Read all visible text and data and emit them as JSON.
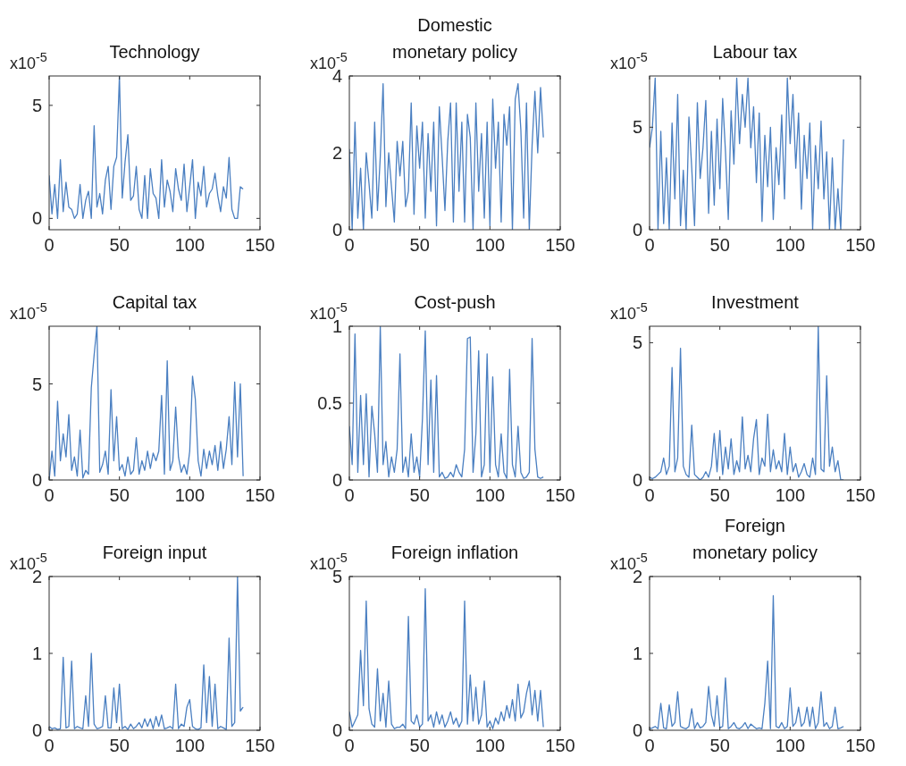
{
  "chart_data": [
    {
      "type": "line",
      "title": "Technology",
      "annotations": [
        "x10$^{-5}$"
      ],
      "line_style": "solid",
      "xlim": [
        0,
        150
      ],
      "xticks": [
        0,
        50,
        100,
        150
      ],
      "ylim": [
        -0.5,
        6.3
      ],
      "yticks": [
        0,
        5
      ],
      "x": [
        0,
        2,
        4,
        6,
        8,
        10,
        12,
        14,
        16,
        18,
        20,
        22,
        24,
        26,
        28,
        30,
        32,
        34,
        36,
        38,
        40,
        42,
        44,
        46,
        48,
        50,
        52,
        54,
        56,
        58,
        60,
        62,
        64,
        66,
        68,
        70,
        72,
        74,
        76,
        78,
        80,
        82,
        84,
        86,
        88,
        90,
        92,
        94,
        96,
        98,
        100,
        102,
        104,
        106,
        108,
        110,
        112,
        114,
        116,
        118,
        120,
        122,
        124,
        126,
        128,
        130,
        132,
        134,
        136,
        138
      ],
      "series": [
        {
          "color": "#4a7fc1",
          "values": [
            1.9,
            0.2,
            1.5,
            0,
            2.6,
            0.3,
            1.6,
            0.5,
            0.4,
            0,
            0.2,
            1.5,
            0,
            0.8,
            1.2,
            0,
            4.1,
            0.5,
            1.1,
            0.2,
            1.7,
            2.3,
            0.4,
            2.3,
            2.7,
            6.3,
            0.9,
            2.5,
            3.7,
            0.8,
            1.0,
            2.3,
            0.4,
            0,
            1.9,
            0,
            2.2,
            1.1,
            0.9,
            0,
            2.6,
            0.5,
            1.7,
            1.2,
            0.3,
            2.2,
            1.3,
            0.8,
            2.4,
            0.3,
            1.4,
            2.6,
            0,
            1.6,
            1.0,
            2.3,
            0.5,
            1.1,
            1.3,
            2.0,
            1.0,
            0.3,
            1.4,
            0.9,
            2.7,
            0.4,
            0,
            0,
            1.4,
            1.3
          ]
        }
      ]
    },
    {
      "type": "line",
      "title": "Domestic monetary policy",
      "annotations": [
        "x10$^{-5}$"
      ],
      "line_style": "solid",
      "xlim": [
        0,
        150
      ],
      "xticks": [
        0,
        50,
        100,
        150
      ],
      "ylim": [
        0,
        4
      ],
      "yticks": [
        0,
        2,
        4
      ],
      "x": [
        0,
        2,
        4,
        6,
        8,
        10,
        12,
        14,
        16,
        18,
        20,
        22,
        24,
        26,
        28,
        30,
        32,
        34,
        36,
        38,
        40,
        42,
        44,
        46,
        48,
        50,
        52,
        54,
        56,
        58,
        60,
        62,
        64,
        66,
        68,
        70,
        72,
        74,
        76,
        78,
        80,
        82,
        84,
        86,
        88,
        90,
        92,
        94,
        96,
        98,
        100,
        102,
        104,
        106,
        108,
        110,
        112,
        114,
        116,
        118,
        120,
        122,
        124,
        126,
        128,
        130,
        132,
        134,
        136,
        138
      ],
      "series": [
        {
          "color": "#4a7fc1",
          "values": [
            2.1,
            0,
            2.8,
            0.3,
            1.6,
            0,
            2.0,
            1.2,
            0.3,
            2.8,
            0.5,
            1.9,
            3.8,
            0.6,
            2.0,
            1.1,
            0.2,
            2.3,
            1.4,
            2.3,
            0.6,
            1.0,
            3.3,
            0.4,
            2.7,
            1.6,
            2.8,
            0.3,
            2.5,
            1.0,
            2.8,
            0.1,
            3.2,
            1.9,
            0.5,
            2.3,
            3.3,
            0.2,
            3.3,
            1.0,
            2.8,
            0.2,
            3.0,
            2.4,
            0,
            3.3,
            1.0,
            2.5,
            0.3,
            2.8,
            0.1,
            3.4,
            1.6,
            2.8,
            0.2,
            3.0,
            2.2,
            3.2,
            0,
            3.4,
            3.8,
            2.6,
            0.3,
            3.3,
            0,
            2.2,
            3.6,
            2.0,
            3.7,
            2.4
          ]
        }
      ]
    },
    {
      "type": "line",
      "title": "Labour tax",
      "annotations": [
        "x10$^{-5}$"
      ],
      "line_style": "solid",
      "xlim": [
        0,
        150
      ],
      "xticks": [
        0,
        50,
        100,
        150
      ],
      "ylim": [
        0,
        7.5
      ],
      "yticks": [
        0,
        5
      ],
      "x": [
        0,
        2,
        4,
        6,
        8,
        10,
        12,
        14,
        16,
        18,
        20,
        22,
        24,
        26,
        28,
        30,
        32,
        34,
        36,
        38,
        40,
        42,
        44,
        46,
        48,
        50,
        52,
        54,
        56,
        58,
        60,
        62,
        64,
        66,
        68,
        70,
        72,
        74,
        76,
        78,
        80,
        82,
        84,
        86,
        88,
        90,
        92,
        94,
        96,
        98,
        100,
        102,
        104,
        106,
        108,
        110,
        112,
        114,
        116,
        118,
        120,
        122,
        124,
        126,
        128,
        130,
        132,
        134,
        136,
        138
      ],
      "series": [
        {
          "color": "#4a7fc1",
          "values": [
            4.0,
            5.0,
            7.4,
            0,
            4.8,
            0.3,
            3.5,
            0,
            5.2,
            1.5,
            6.6,
            0.2,
            2.9,
            0,
            5.5,
            3.0,
            0.2,
            6.2,
            2.5,
            4.0,
            6.3,
            0.8,
            4.8,
            1.2,
            5.4,
            2.0,
            6.4,
            3.8,
            0.5,
            5.8,
            3.2,
            7.4,
            4.2,
            6.6,
            5.0,
            7.4,
            4.0,
            6.0,
            2.3,
            5.7,
            0.4,
            4.6,
            2.1,
            5.0,
            0.5,
            4.0,
            2.2,
            5.6,
            1.5,
            7.4,
            4.2,
            6.6,
            3.0,
            5.7,
            1.0,
            4.6,
            2.5,
            5.2,
            0,
            4.1,
            2.0,
            5.3,
            1.5,
            3.8,
            0,
            3.5,
            0,
            2.0,
            0,
            4.4
          ]
        }
      ]
    },
    {
      "type": "line",
      "title": "Capital tax",
      "annotations": [
        "x10$^{-5}$"
      ],
      "line_style": "solid",
      "xlim": [
        0,
        150
      ],
      "xticks": [
        0,
        50,
        100,
        150
      ],
      "ylim": [
        0,
        8
      ],
      "yticks": [
        0,
        5
      ],
      "x": [
        0,
        2,
        4,
        6,
        8,
        10,
        12,
        14,
        16,
        18,
        20,
        22,
        24,
        26,
        28,
        30,
        32,
        34,
        36,
        38,
        40,
        42,
        44,
        46,
        48,
        50,
        52,
        54,
        56,
        58,
        60,
        62,
        64,
        66,
        68,
        70,
        72,
        74,
        76,
        78,
        80,
        82,
        84,
        86,
        88,
        90,
        92,
        94,
        96,
        98,
        100,
        102,
        104,
        106,
        108,
        110,
        112,
        114,
        116,
        118,
        120,
        122,
        124,
        126,
        128,
        130,
        132,
        134,
        136,
        138
      ],
      "series": [
        {
          "color": "#4a7fc1",
          "values": [
            0,
            1.5,
            0.2,
            4.1,
            1.0,
            2.4,
            1.2,
            3.4,
            0.5,
            1.2,
            0.2,
            2.6,
            0.1,
            0.5,
            0.3,
            4.8,
            6.5,
            8.0,
            0.4,
            0.8,
            1.5,
            0.3,
            4.7,
            1.0,
            3.3,
            0.5,
            0.8,
            0.2,
            1.2,
            0.3,
            0.5,
            2.2,
            0.3,
            1.0,
            0.5,
            1.5,
            0.6,
            1.4,
            1.0,
            1.5,
            4.4,
            0.3,
            6.2,
            0.5,
            1.0,
            3.8,
            1.2,
            0.4,
            0.8,
            0.3,
            1.5,
            5.4,
            4.2,
            1.0,
            0.2,
            1.6,
            0.6,
            1.5,
            0.8,
            1.8,
            0.5,
            2.0,
            0.6,
            1.6,
            3.3,
            0.8,
            5.1,
            1.2,
            5.0,
            0.2
          ]
        }
      ]
    },
    {
      "type": "line",
      "title": "Cost-push",
      "annotations": [
        "x10$^{-5}$"
      ],
      "line_style": "solid",
      "xlim": [
        0,
        150
      ],
      "xticks": [
        0,
        50,
        100,
        150
      ],
      "ylim": [
        0,
        1
      ],
      "yticks": [
        0,
        0.5,
        1
      ],
      "x": [
        0,
        2,
        4,
        6,
        8,
        10,
        12,
        14,
        16,
        18,
        20,
        22,
        24,
        26,
        28,
        30,
        32,
        34,
        36,
        38,
        40,
        42,
        44,
        46,
        48,
        50,
        52,
        54,
        56,
        58,
        60,
        62,
        64,
        66,
        68,
        70,
        72,
        74,
        76,
        78,
        80,
        82,
        84,
        86,
        88,
        90,
        92,
        94,
        96,
        98,
        100,
        102,
        104,
        106,
        108,
        110,
        112,
        114,
        116,
        118,
        120,
        122,
        124,
        126,
        128,
        130,
        132,
        134,
        136,
        138
      ],
      "series": [
        {
          "color": "#4a7fc1",
          "values": [
            0.35,
            0.1,
            0.95,
            0.05,
            0.55,
            0.1,
            0.56,
            0.02,
            0.48,
            0.3,
            0.05,
            1.0,
            0.1,
            0.25,
            0.02,
            0.15,
            0.05,
            0.2,
            0.82,
            0.05,
            0.15,
            0.02,
            0.3,
            0.05,
            0.15,
            0.02,
            0.4,
            0.97,
            0.1,
            0.65,
            0.05,
            0.68,
            0.02,
            0.05,
            0.01,
            0.02,
            0.05,
            0.02,
            0.1,
            0.05,
            0.02,
            0.2,
            0.92,
            0.93,
            0.05,
            0.3,
            0.84,
            0.02,
            0.1,
            0.82,
            0.05,
            0.67,
            0.1,
            0.02,
            0.3,
            0.05,
            0.01,
            0.72,
            0.1,
            0.02,
            0.35,
            0.05,
            0.01,
            0.02,
            0.05,
            0.92,
            0.2,
            0.02,
            0.01,
            0.02
          ]
        }
      ]
    },
    {
      "type": "line",
      "title": "Investment",
      "annotations": [
        "x10$^{-5}$"
      ],
      "line_style": "solid",
      "xlim": [
        0,
        150
      ],
      "xticks": [
        0,
        50,
        100,
        150
      ],
      "ylim": [
        0,
        5.6
      ],
      "yticks": [
        0,
        5
      ],
      "x": [
        0,
        2,
        4,
        6,
        8,
        10,
        12,
        14,
        16,
        18,
        20,
        22,
        24,
        26,
        28,
        30,
        32,
        34,
        36,
        38,
        40,
        42,
        44,
        46,
        48,
        50,
        52,
        54,
        56,
        58,
        60,
        62,
        64,
        66,
        68,
        70,
        72,
        74,
        76,
        78,
        80,
        82,
        84,
        86,
        88,
        90,
        92,
        94,
        96,
        98,
        100,
        102,
        104,
        106,
        108,
        110,
        112,
        114,
        116,
        118,
        120,
        122,
        124,
        126,
        128,
        130,
        132,
        134,
        136,
        138
      ],
      "series": [
        {
          "color": "#4a7fc1",
          "values": [
            0.1,
            0.05,
            0.1,
            0.2,
            0.3,
            0.8,
            0.2,
            0.5,
            4.1,
            0.3,
            0.8,
            4.8,
            0.5,
            0.2,
            0.1,
            2.0,
            0.2,
            0.1,
            0,
            0.1,
            0.3,
            0.1,
            0.5,
            1.7,
            0.3,
            1.8,
            0.2,
            1.2,
            0.4,
            1.5,
            0.2,
            0.7,
            0.3,
            2.3,
            0.4,
            0.9,
            0.3,
            1.5,
            2.2,
            0.2,
            0.8,
            0.5,
            2.4,
            0.3,
            1.1,
            0.4,
            0.7,
            0.3,
            1.7,
            0.2,
            1.2,
            0.3,
            0.6,
            0.1,
            0.3,
            0.6,
            0.2,
            0.1,
            0.8,
            0.2,
            5.6,
            0.4,
            0.3,
            3.8,
            0.5,
            1.2,
            0.3,
            0.7,
            0,
            0
          ]
        }
      ]
    },
    {
      "type": "line",
      "title": "Foreign input",
      "annotations": [
        "x10$^{-5}$"
      ],
      "line_style": "solid",
      "xlim": [
        0,
        150
      ],
      "xticks": [
        0,
        50,
        100,
        150
      ],
      "ylim": [
        0,
        2
      ],
      "yticks": [
        0,
        1,
        2
      ],
      "x": [
        0,
        2,
        4,
        6,
        8,
        10,
        12,
        14,
        16,
        18,
        20,
        22,
        24,
        26,
        28,
        30,
        32,
        34,
        36,
        38,
        40,
        42,
        44,
        46,
        48,
        50,
        52,
        54,
        56,
        58,
        60,
        62,
        64,
        66,
        68,
        70,
        72,
        74,
        76,
        78,
        80,
        82,
        84,
        86,
        88,
        90,
        92,
        94,
        96,
        98,
        100,
        102,
        104,
        106,
        108,
        110,
        112,
        114,
        116,
        118,
        120,
        122,
        124,
        126,
        128,
        130,
        132,
        134,
        136,
        138
      ],
      "series": [
        {
          "color": "#4a7fc1",
          "values": [
            0.05,
            0.02,
            0.03,
            0.01,
            0.02,
            0.95,
            0.03,
            0.05,
            0.9,
            0.02,
            0.05,
            0.03,
            0.02,
            0.45,
            0.05,
            1.0,
            0.08,
            0.02,
            0.03,
            0.05,
            0.45,
            0.03,
            0.03,
            0.55,
            0.1,
            0.6,
            0.02,
            0.05,
            0.01,
            0.08,
            0.02,
            0.05,
            0.1,
            0.03,
            0.15,
            0.05,
            0.15,
            0.02,
            0.18,
            0.05,
            0.2,
            0.02,
            0.03,
            0.05,
            0.02,
            0.6,
            0.02,
            0.08,
            0.05,
            0.3,
            0.4,
            0.05,
            0.02,
            0.01,
            0.03,
            0.85,
            0.1,
            0.7,
            0.05,
            0.6,
            0.02,
            0.05,
            0.03,
            0.01,
            1.2,
            0.05,
            0.1,
            2.0,
            0.25,
            0.3
          ]
        }
      ]
    },
    {
      "type": "line",
      "title": "Foreign inflation",
      "annotations": [
        "x10$^{-5}$"
      ],
      "line_style": "solid",
      "xlim": [
        0,
        150
      ],
      "xticks": [
        0,
        50,
        100,
        150
      ],
      "ylim": [
        0,
        5
      ],
      "yticks": [
        0,
        5
      ],
      "x": [
        0,
        2,
        4,
        6,
        8,
        10,
        12,
        14,
        16,
        18,
        20,
        22,
        24,
        26,
        28,
        30,
        32,
        34,
        36,
        38,
        40,
        42,
        44,
        46,
        48,
        50,
        52,
        54,
        56,
        58,
        60,
        62,
        64,
        66,
        68,
        70,
        72,
        74,
        76,
        78,
        80,
        82,
        84,
        86,
        88,
        90,
        92,
        94,
        96,
        98,
        100,
        102,
        104,
        106,
        108,
        110,
        112,
        114,
        116,
        118,
        120,
        122,
        124,
        126,
        128,
        130,
        132,
        134,
        136,
        138
      ],
      "series": [
        {
          "color": "#4a7fc1",
          "values": [
            0.6,
            0.1,
            0.3,
            0.5,
            2.6,
            0.8,
            4.2,
            0.7,
            0.2,
            0.1,
            2.0,
            0.3,
            1.2,
            0.1,
            1.6,
            0.2,
            0.05,
            0.1,
            0.1,
            0.2,
            0.05,
            3.7,
            0.3,
            0.2,
            0.5,
            0.1,
            0.2,
            4.6,
            0.3,
            0.5,
            0.1,
            0.6,
            0.2,
            0.5,
            0.1,
            0.3,
            0.6,
            0.2,
            0.4,
            0.1,
            0.3,
            4.2,
            0.2,
            1.8,
            0.3,
            1.4,
            0.2,
            0.5,
            1.6,
            0.1,
            0.3,
            0.05,
            0.4,
            0.2,
            0.6,
            0.3,
            0.8,
            0.4,
            1.0,
            0.3,
            1.5,
            0.4,
            0.6,
            1.2,
            1.6,
            0.5,
            1.3,
            0.3,
            1.3,
            0.1
          ]
        }
      ]
    },
    {
      "type": "line",
      "title": "Foreign monetary policy",
      "annotations": [
        "x10$^{-5}$"
      ],
      "line_style": "solid",
      "xlim": [
        0,
        150
      ],
      "xticks": [
        0,
        50,
        100,
        150
      ],
      "ylim": [
        0,
        2
      ],
      "yticks": [
        0,
        1,
        2
      ],
      "x": [
        0,
        2,
        4,
        6,
        8,
        10,
        12,
        14,
        16,
        18,
        20,
        22,
        24,
        26,
        28,
        30,
        32,
        34,
        36,
        38,
        40,
        42,
        44,
        46,
        48,
        50,
        52,
        54,
        56,
        58,
        60,
        62,
        64,
        66,
        68,
        70,
        72,
        74,
        76,
        78,
        80,
        82,
        84,
        86,
        88,
        90,
        92,
        94,
        96,
        98,
        100,
        102,
        104,
        106,
        108,
        110,
        112,
        114,
        116,
        118,
        120,
        122,
        124,
        126,
        128,
        130,
        132,
        134,
        136,
        138
      ],
      "series": [
        {
          "color": "#4a7fc1",
          "values": [
            0.02,
            0.03,
            0.05,
            0.02,
            0.35,
            0.03,
            0.02,
            0.33,
            0.05,
            0.1,
            0.5,
            0.05,
            0.03,
            0.02,
            0.05,
            0.28,
            0.02,
            0.1,
            0.03,
            0.05,
            0.1,
            0.57,
            0.2,
            0.05,
            0.45,
            0.03,
            0.05,
            0.68,
            0.02,
            0.05,
            0.1,
            0.03,
            0.02,
            0.05,
            0.1,
            0.02,
            0.08,
            0.05,
            0.02,
            0.03,
            0.02,
            0.35,
            0.9,
            0.02,
            1.75,
            0.05,
            0.03,
            0.1,
            0.02,
            0.05,
            0.55,
            0.05,
            0.1,
            0.3,
            0.05,
            0.1,
            0.3,
            0.05,
            0.3,
            0.02,
            0.1,
            0.5,
            0.05,
            0.1,
            0.02,
            0.05,
            0.3,
            0.02,
            0.03,
            0.05
          ]
        }
      ]
    }
  ]
}
